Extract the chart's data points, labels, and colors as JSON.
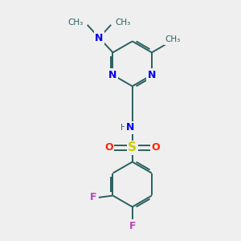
{
  "bg_color": "#efefef",
  "bond_color": "#2a6060",
  "bond_width": 1.4,
  "atoms": {
    "N_blue": "#0000ee",
    "N_NH": "#336666",
    "S_color": "#cccc00",
    "O_color": "#ff2200",
    "F_color": "#bb44bb",
    "C_color": "#2a6060"
  },
  "figsize": [
    3.0,
    3.0
  ],
  "dpi": 100,
  "xlim": [
    0,
    10
  ],
  "ylim": [
    0,
    10
  ]
}
